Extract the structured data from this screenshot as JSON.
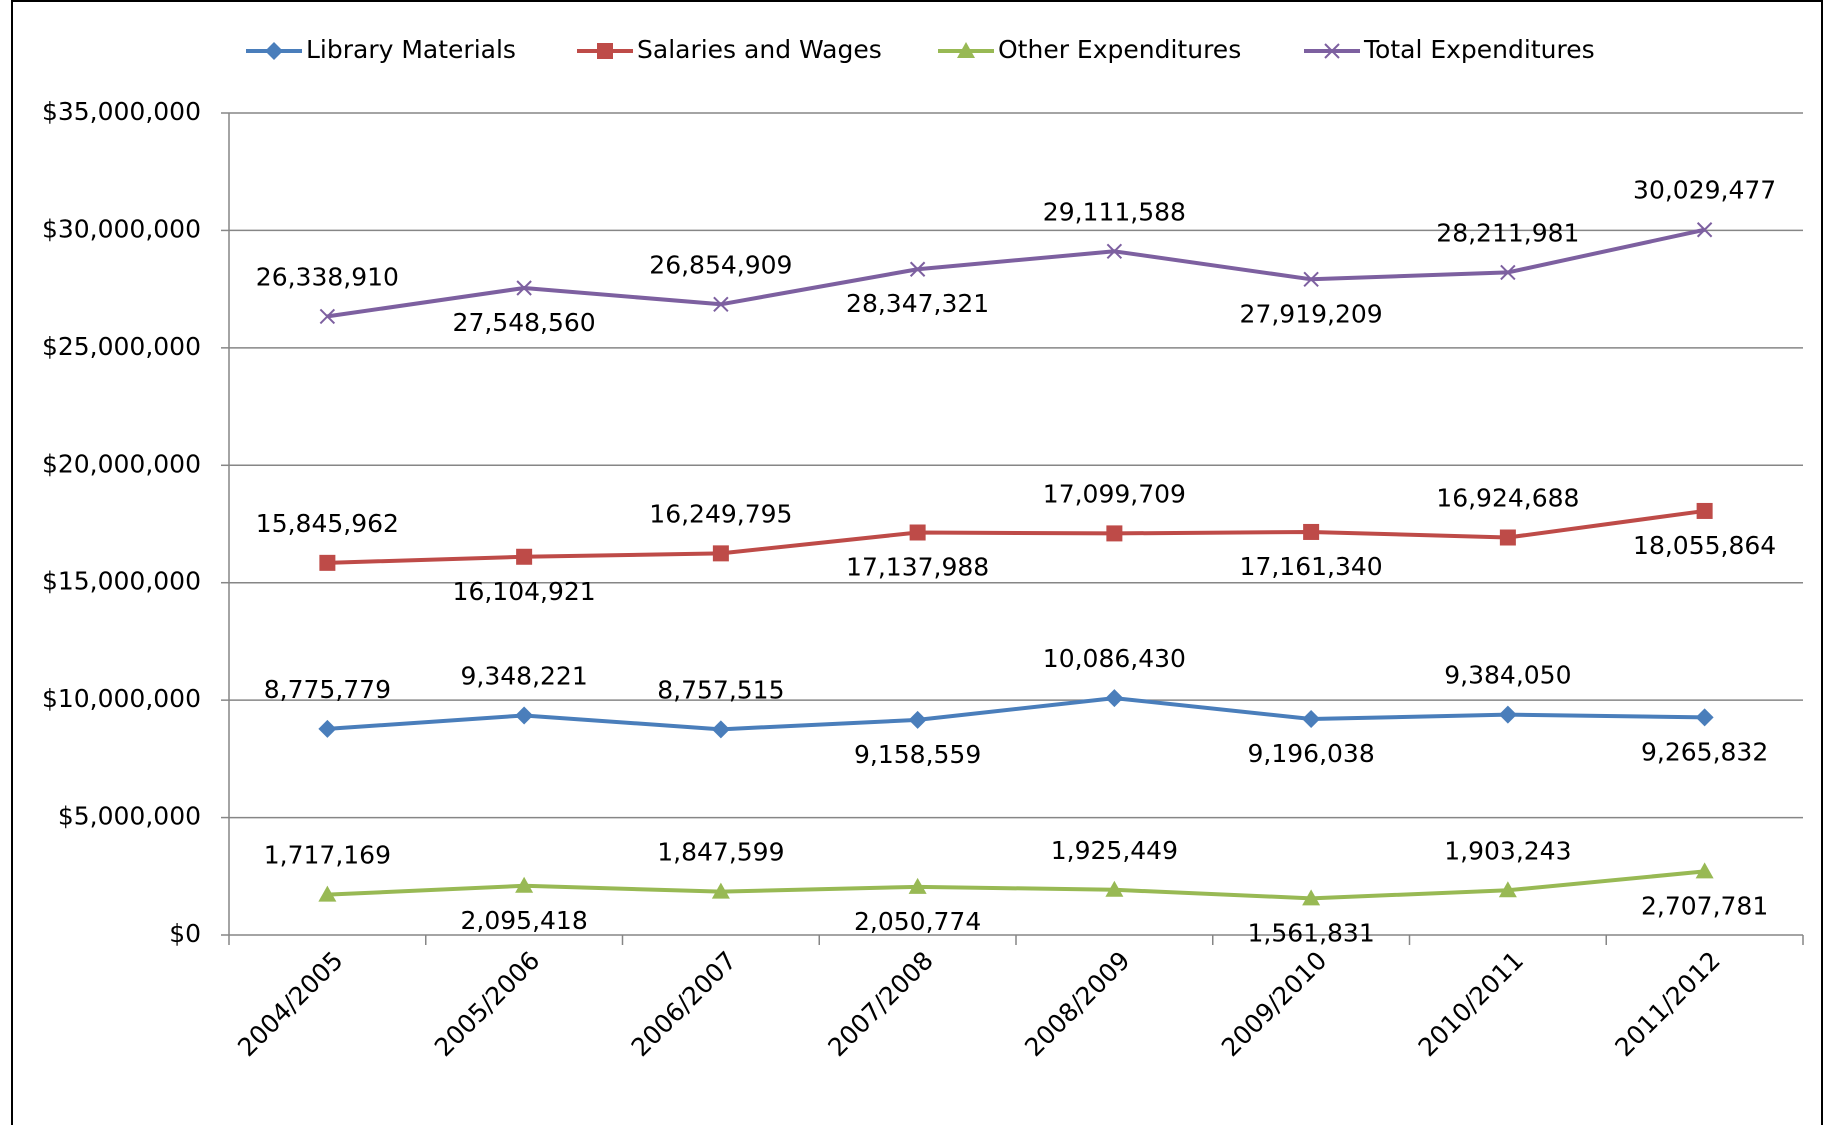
{
  "chart_data": {
    "type": "line",
    "categories": [
      "2004/2005",
      "2005/2006",
      "2006/2007",
      "2007/2008",
      "2008/2009",
      "2009/2010",
      "2010/2011",
      "2011/2012"
    ],
    "series": [
      {
        "name": "Library Materials",
        "color": "#4a7ebb",
        "marker": "diamond",
        "values": [
          8775779,
          9348221,
          8757515,
          9158559,
          10086430,
          9196038,
          9384050,
          9265832
        ],
        "value_labels": [
          "8,775,779",
          "9,348,221",
          "8,757,515",
          "9,158,559",
          "10,086,430",
          "9,196,038",
          "9,384,050",
          "9,265,832"
        ]
      },
      {
        "name": "Salaries and Wages",
        "color": "#be4b48",
        "marker": "square",
        "values": [
          15845962,
          16104921,
          16249795,
          17137988,
          17099709,
          17161340,
          16924688,
          18055864
        ],
        "value_labels": [
          "15,845,962",
          "16,104,921",
          "16,249,795",
          "17,137,988",
          "17,099,709",
          "17,161,340",
          "16,924,688",
          "18,055,864"
        ]
      },
      {
        "name": "Other Expenditures",
        "color": "#98b954",
        "marker": "triangle",
        "values": [
          1717169,
          2095418,
          1847599,
          2050774,
          1925449,
          1561831,
          1903243,
          2707781
        ],
        "value_labels": [
          "1,717,169",
          "2,095,418",
          "1,847,599",
          "2,050,774",
          "1,925,449",
          "1,561,831",
          "1,903,243",
          "2,707,781"
        ]
      },
      {
        "name": "Total Expenditures",
        "color": "#7d60a0",
        "marker": "x",
        "values": [
          26338910,
          27548560,
          26854909,
          28347321,
          29111588,
          27919209,
          28211981,
          30029477
        ],
        "value_labels": [
          "26,338,910",
          "27,548,560",
          "26,854,909",
          "28,347,321",
          "29,111,588",
          "27,919,209",
          "28,211,981",
          "30,029,477"
        ]
      }
    ],
    "ylim": [
      0,
      35000000
    ],
    "yticks": [
      {
        "value": 0,
        "label": "$0"
      },
      {
        "value": 5000000,
        "label": "$5,000,000"
      },
      {
        "value": 10000000,
        "label": "$10,000,000"
      },
      {
        "value": 15000000,
        "label": "$15,000,000"
      },
      {
        "value": 20000000,
        "label": "$20,000,000"
      },
      {
        "value": 25000000,
        "label": "$25,000,000"
      },
      {
        "value": 30000000,
        "label": "$30,000,000"
      },
      {
        "value": 35000000,
        "label": "$35,000,000"
      }
    ],
    "grid": true,
    "legend": "top"
  }
}
